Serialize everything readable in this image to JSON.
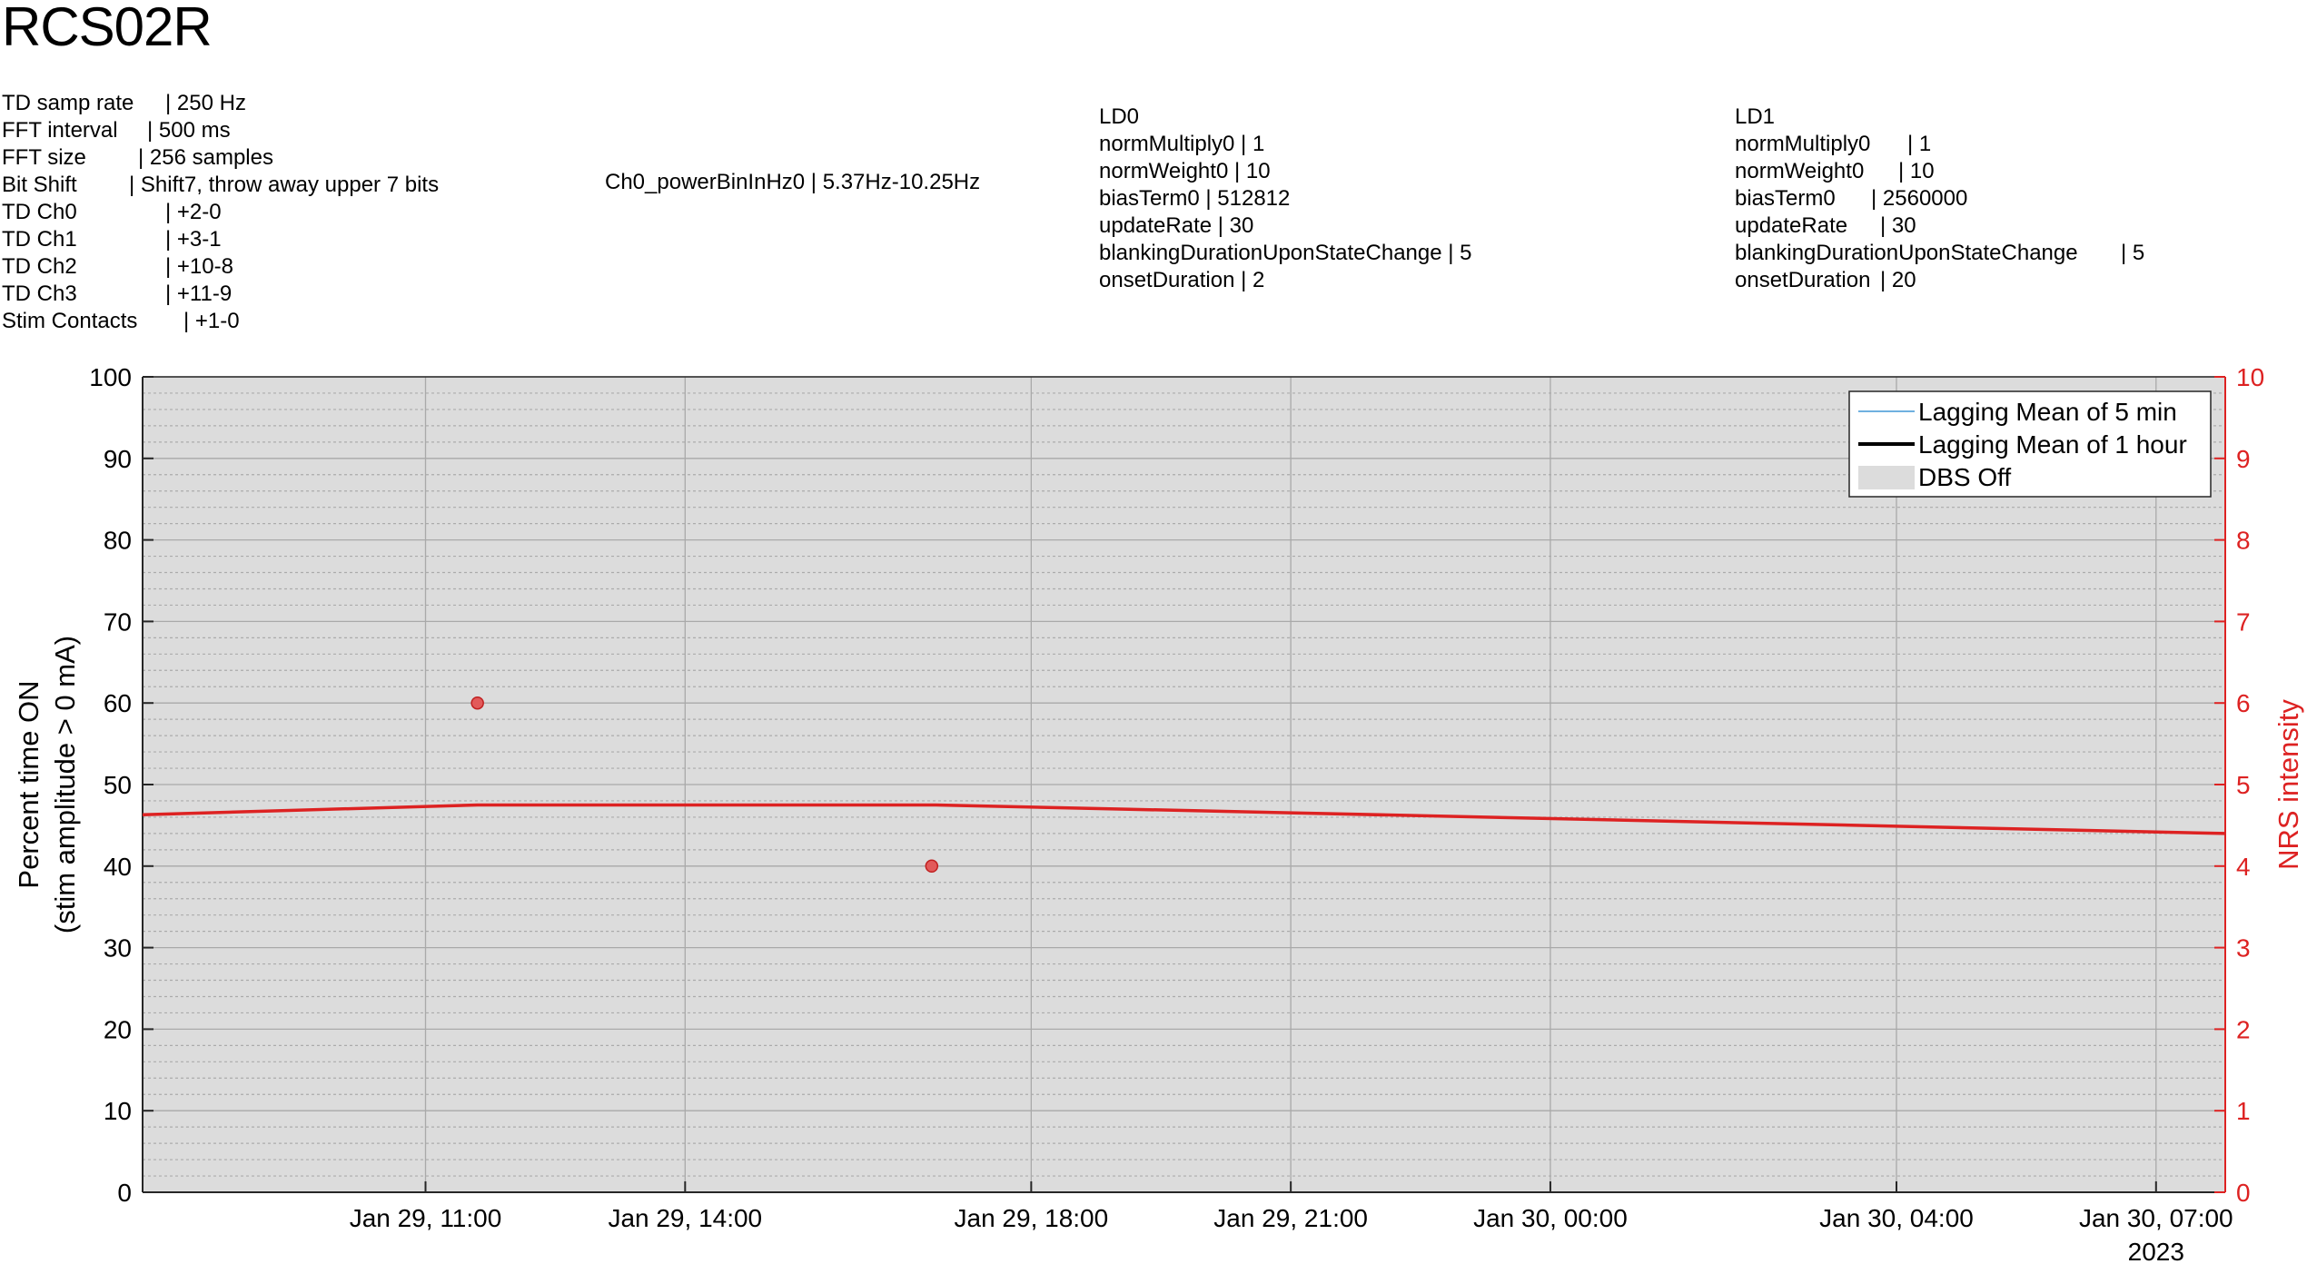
{
  "title": "RCS02R",
  "settings": [
    {
      "label": "TD samp rate",
      "value": "| 250 Hz"
    },
    {
      "label": "FFT interval",
      "value": "| 500 ms"
    },
    {
      "label": "FFT size",
      "value": "| 256 samples"
    },
    {
      "label": "Bit Shift",
      "value": "| Shift7, throw away upper 7 bits"
    },
    {
      "label": "TD Ch0",
      "value": "| +2-0"
    },
    {
      "label": "TD Ch1",
      "value": "| +3-1"
    },
    {
      "label": "TD Ch2",
      "value": "| +10-8"
    },
    {
      "label": "TD Ch3",
      "value": "| +11-9"
    },
    {
      "label": "Stim Contacts",
      "value": "| +1-0"
    }
  ],
  "power_bin": "Ch0_powerBinInHz0 | 5.37Hz-10.25Hz",
  "ld0": {
    "heading": "LD0",
    "rows": [
      "normMultiply0 | 1",
      "normWeight0 | 10",
      "biasTerm0 | 512812",
      "updateRate | 30",
      "blankingDurationUponStateChange | 5",
      "onsetDuration | 2"
    ]
  },
  "ld1": {
    "heading": "LD1",
    "rows": [
      {
        "label": "normMultiply0",
        "value": "| 1"
      },
      {
        "label": "normWeight0",
        "value": "| 10"
      },
      {
        "label": "biasTerm0",
        "value": "| 2560000"
      },
      {
        "label": "updateRate",
        "value": "| 30"
      },
      {
        "label": "blankingDurationUponStateChange",
        "value": "| 5"
      },
      {
        "label": "onsetDuration",
        "value": "| 20"
      }
    ]
  },
  "chart_data": {
    "type": "line",
    "ylabel_left": [
      "Percent time ON",
      "(stim amplitude > 0 mA)"
    ],
    "ylabel_right": "NRS intensity",
    "ylim_left": [
      0,
      100
    ],
    "ylim_right": [
      0,
      10
    ],
    "yticks_left": [
      0,
      10,
      20,
      30,
      40,
      50,
      60,
      70,
      80,
      90,
      100
    ],
    "yticks_right": [
      0,
      1,
      2,
      3,
      4,
      5,
      6,
      7,
      8,
      9,
      10
    ],
    "x_unit": "hours since Jan 29 2023 00:00",
    "xlim": [
      7.73,
      31.8
    ],
    "xticks": [
      {
        "x": 11,
        "label": "Jan 29, 11:00"
      },
      {
        "x": 14,
        "label": "Jan 29, 14:00"
      },
      {
        "x": 18,
        "label": "Jan 29, 18:00"
      },
      {
        "x": 21,
        "label": "Jan 29, 21:00"
      },
      {
        "x": 24,
        "label": "Jan 30, 00:00"
      },
      {
        "x": 28,
        "label": "Jan 30, 04:00"
      },
      {
        "x": 31,
        "label": "Jan 30, 07:00"
      }
    ],
    "year_label": "2023",
    "grid": true,
    "dbs_off_region": [
      7.73,
      31.8
    ],
    "series": [
      {
        "name": "NRS intensity",
        "axis": "right",
        "color": "#dd2222",
        "x": [
          7.73,
          11.6,
          16.9,
          31.8
        ],
        "y": [
          4.63,
          4.75,
          4.75,
          4.4
        ]
      }
    ],
    "nrs_points": [
      {
        "x": 11.6,
        "y": 6.0
      },
      {
        "x": 16.85,
        "y": 4.0
      }
    ],
    "legend": {
      "position": "top-right",
      "entries": [
        {
          "label": "Lagging Mean of 5 min",
          "style": "line",
          "color": "#6fb0e0"
        },
        {
          "label": "Lagging Mean of 1 hour",
          "style": "line",
          "color": "#000000"
        },
        {
          "label": "DBS Off",
          "style": "patch",
          "color": "#dcdcdc"
        }
      ]
    }
  }
}
